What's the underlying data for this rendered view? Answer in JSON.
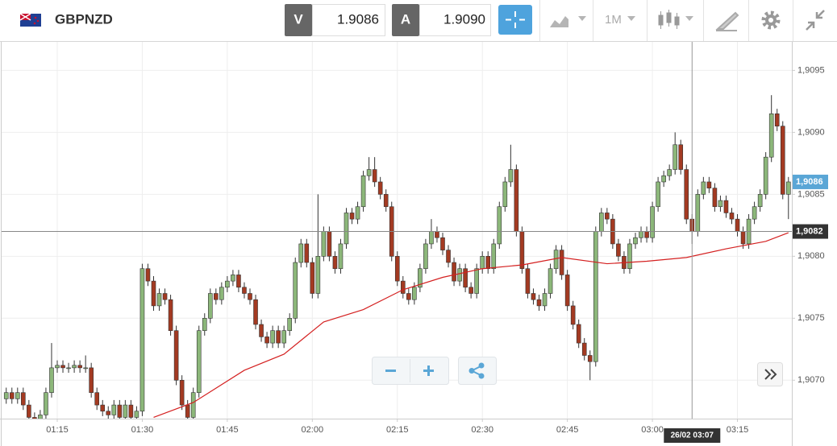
{
  "header": {
    "symbol": "GBPNZD",
    "bid": {
      "label": "V",
      "value": "1.9086"
    },
    "ask": {
      "label": "A",
      "value": "1.9090"
    },
    "timeframe": "1M"
  },
  "chart_data": {
    "type": "candlestick",
    "xlim": [
      64.9,
      204.6
    ],
    "ylim": [
      1.90669,
      1.90973
    ],
    "xticks": [
      {
        "value": 75,
        "label": "01:15"
      },
      {
        "value": 90,
        "label": "01:30"
      },
      {
        "value": 105,
        "label": "01:45"
      },
      {
        "value": 120,
        "label": "02:00"
      },
      {
        "value": 135,
        "label": "02:15"
      },
      {
        "value": 150,
        "label": "02:30"
      },
      {
        "value": 165,
        "label": "02:45"
      },
      {
        "value": 180,
        "label": "03:00"
      },
      {
        "value": 195,
        "label": "03:15"
      }
    ],
    "yticks": [
      {
        "value": 1.907,
        "label": "1,9070"
      },
      {
        "value": 1.9075,
        "label": "1,9075"
      },
      {
        "value": 1.908,
        "label": "1,9080"
      },
      {
        "value": 1.9085,
        "label": "1,9085"
      },
      {
        "value": 1.909,
        "label": "1,9090"
      },
      {
        "value": 1.9095,
        "label": "1,9095"
      }
    ],
    "grid": true,
    "up_color": "#8cb77a",
    "down_color": "#a33a22",
    "x": [
      66,
      67,
      68,
      69,
      70,
      71,
      72,
      73,
      74,
      75,
      76,
      77,
      78,
      79,
      80,
      81,
      82,
      83,
      84,
      85,
      86,
      87,
      88,
      89,
      90,
      91,
      92,
      93,
      94,
      95,
      96,
      97,
      98,
      99,
      100,
      101,
      102,
      103,
      104,
      105,
      106,
      107,
      108,
      109,
      110,
      111,
      112,
      113,
      114,
      115,
      116,
      117,
      118,
      119,
      120,
      121,
      122,
      123,
      124,
      125,
      126,
      127,
      128,
      129,
      130,
      131,
      132,
      133,
      134,
      135,
      136,
      137,
      138,
      139,
      140,
      141,
      142,
      143,
      144,
      145,
      146,
      147,
      148,
      149,
      150,
      151,
      152,
      153,
      154,
      155,
      156,
      157,
      158,
      159,
      160,
      161,
      162,
      163,
      164,
      165,
      166,
      167,
      168,
      169,
      170,
      171,
      172,
      173,
      174,
      175,
      176,
      177,
      178,
      179,
      180,
      181,
      182,
      183,
      184,
      185,
      186,
      187,
      188,
      189,
      190,
      191,
      192,
      193,
      194,
      195,
      196,
      197,
      198,
      199,
      200,
      201,
      202,
      203,
      204
    ],
    "open": [
      1.90685,
      1.9069,
      1.90685,
      1.9069,
      1.9068,
      1.9067,
      1.90668,
      1.90672,
      1.9069,
      1.9071,
      1.90712,
      1.9071,
      1.9071,
      1.90712,
      1.9071,
      1.9071,
      1.9069,
      1.9068,
      1.90675,
      1.90672,
      1.9068,
      1.9067,
      1.9068,
      1.9067,
      1.90675,
      1.9079,
      1.9078,
      1.9076,
      1.9077,
      1.90765,
      1.9074,
      1.907,
      1.9068,
      1.9067,
      1.9069,
      1.9074,
      1.9075,
      1.9077,
      1.90765,
      1.90775,
      1.9078,
      1.90785,
      1.90775,
      1.9077,
      1.90765,
      1.90745,
      1.90735,
      1.9073,
      1.9074,
      1.9073,
      1.9074,
      1.9075,
      1.90795,
      1.9081,
      1.90795,
      1.9077,
      1.908,
      1.9082,
      1.908,
      1.9079,
      1.9081,
      1.90835,
      1.9083,
      1.9084,
      1.90865,
      1.9087,
      1.9086,
      1.9085,
      1.9084,
      1.908,
      1.9078,
      1.9077,
      1.90765,
      1.90775,
      1.9079,
      1.9081,
      1.9082,
      1.90815,
      1.90805,
      1.90795,
      1.9078,
      1.9079,
      1.90775,
      1.9077,
      1.9079,
      1.908,
      1.9079,
      1.9081,
      1.9084,
      1.9086,
      1.9087,
      1.9082,
      1.9079,
      1.9077,
      1.90765,
      1.9076,
      1.9077,
      1.9079,
      1.90805,
      1.90785,
      1.9076,
      1.90745,
      1.9073,
      1.9072,
      1.90715,
      1.9082,
      1.90835,
      1.9083,
      1.9081,
      1.908,
      1.9079,
      1.9081,
      1.90815,
      1.9082,
      1.90815,
      1.9084,
      1.9086,
      1.90865,
      1.9087,
      1.9089,
      1.9087,
      1.9083,
      1.9082,
      1.9085,
      1.9086,
      1.90855,
      1.9084,
      1.90845,
      1.90835,
      1.9083,
      1.9082,
      1.9081,
      1.9083,
      1.9084,
      1.9085,
      1.9088,
      1.90915,
      1.90905,
      1.9085
    ],
    "high": [
      1.90694,
      1.90694,
      1.90694,
      1.90694,
      1.90684,
      1.90674,
      1.90676,
      1.90694,
      1.9073,
      1.90716,
      1.90716,
      1.90714,
      1.90716,
      1.90716,
      1.9072,
      1.90714,
      1.90694,
      1.90684,
      1.90679,
      1.90684,
      1.90684,
      1.90684,
      1.90684,
      1.90679,
      1.90794,
      1.90794,
      1.90784,
      1.90774,
      1.90774,
      1.90769,
      1.90744,
      1.90704,
      1.90684,
      1.90694,
      1.90744,
      1.90754,
      1.90774,
      1.90774,
      1.90779,
      1.90784,
      1.90789,
      1.90789,
      1.90779,
      1.90774,
      1.90769,
      1.90749,
      1.90739,
      1.90744,
      1.90744,
      1.90744,
      1.90754,
      1.90799,
      1.90814,
      1.90814,
      1.90799,
      1.9085,
      1.90824,
      1.90824,
      1.90804,
      1.90814,
      1.90839,
      1.90839,
      1.90844,
      1.90869,
      1.9088,
      1.9088,
      1.90864,
      1.90854,
      1.90844,
      1.90804,
      1.90784,
      1.90774,
      1.90779,
      1.90794,
      1.90814,
      1.9083,
      1.90824,
      1.90819,
      1.90809,
      1.90799,
      1.90794,
      1.90794,
      1.90779,
      1.90794,
      1.90804,
      1.90804,
      1.90814,
      1.90844,
      1.90864,
      1.9089,
      1.90874,
      1.90824,
      1.90794,
      1.90774,
      1.90769,
      1.90774,
      1.90794,
      1.90809,
      1.90809,
      1.90789,
      1.90764,
      1.90749,
      1.90734,
      1.90724,
      1.90824,
      1.90839,
      1.90839,
      1.90834,
      1.90814,
      1.90804,
      1.90814,
      1.90819,
      1.90824,
      1.90824,
      1.90844,
      1.90864,
      1.90869,
      1.90874,
      1.909,
      1.90894,
      1.90874,
      1.90834,
      1.90854,
      1.90864,
      1.90864,
      1.90859,
      1.90849,
      1.90849,
      1.90839,
      1.90834,
      1.90824,
      1.90834,
      1.90844,
      1.90854,
      1.90884,
      1.9093,
      1.90919,
      1.90909,
      1.90864
    ],
    "low": [
      1.90681,
      1.90681,
      1.90681,
      1.90676,
      1.90666,
      1.90664,
      1.90664,
      1.90668,
      1.90686,
      1.90706,
      1.90706,
      1.90706,
      1.90706,
      1.90706,
      1.90706,
      1.90686,
      1.90676,
      1.90671,
      1.90668,
      1.90668,
      1.90666,
      1.90666,
      1.90666,
      1.90666,
      1.90671,
      1.90776,
      1.90756,
      1.90756,
      1.90761,
      1.90736,
      1.90696,
      1.90676,
      1.90666,
      1.90666,
      1.90686,
      1.90736,
      1.90746,
      1.90761,
      1.90761,
      1.90771,
      1.90776,
      1.90771,
      1.90766,
      1.90761,
      1.90741,
      1.90731,
      1.90726,
      1.90726,
      1.90726,
      1.90726,
      1.90736,
      1.90746,
      1.90791,
      1.90791,
      1.90766,
      1.90766,
      1.90796,
      1.90796,
      1.90786,
      1.90786,
      1.90806,
      1.90826,
      1.90826,
      1.90836,
      1.90861,
      1.90856,
      1.90846,
      1.90836,
      1.90796,
      1.90776,
      1.90766,
      1.90761,
      1.90761,
      1.90771,
      1.90786,
      1.90806,
      1.90811,
      1.90801,
      1.90791,
      1.90776,
      1.90776,
      1.90771,
      1.90766,
      1.90766,
      1.90786,
      1.90786,
      1.90786,
      1.90806,
      1.90836,
      1.90856,
      1.90816,
      1.90786,
      1.90766,
      1.90761,
      1.90756,
      1.90756,
      1.90766,
      1.90786,
      1.90781,
      1.90756,
      1.90741,
      1.90726,
      1.90716,
      1.907,
      1.90711,
      1.90816,
      1.90826,
      1.90806,
      1.90796,
      1.90786,
      1.90786,
      1.90806,
      1.90811,
      1.90811,
      1.90811,
      1.90836,
      1.90856,
      1.90861,
      1.90866,
      1.90866,
      1.90826,
      1.9081,
      1.90816,
      1.90846,
      1.90851,
      1.90836,
      1.90836,
      1.90831,
      1.90826,
      1.90816,
      1.90806,
      1.90806,
      1.90826,
      1.90836,
      1.90846,
      1.90876,
      1.90901,
      1.90846,
      1.9083
    ],
    "close": [
      1.9069,
      1.90685,
      1.9069,
      1.9068,
      1.9067,
      1.90668,
      1.90672,
      1.9069,
      1.9071,
      1.90712,
      1.9071,
      1.9071,
      1.90712,
      1.9071,
      1.9071,
      1.9069,
      1.9068,
      1.90675,
      1.90672,
      1.9068,
      1.9067,
      1.9068,
      1.9067,
      1.90675,
      1.9079,
      1.9078,
      1.9076,
      1.9077,
      1.90765,
      1.9074,
      1.907,
      1.9068,
      1.9067,
      1.9069,
      1.9074,
      1.9075,
      1.9077,
      1.90765,
      1.90775,
      1.9078,
      1.90785,
      1.90775,
      1.9077,
      1.90765,
      1.90745,
      1.90735,
      1.9073,
      1.9074,
      1.9073,
      1.9074,
      1.9075,
      1.90795,
      1.9081,
      1.90795,
      1.9077,
      1.908,
      1.9082,
      1.908,
      1.9079,
      1.9081,
      1.90835,
      1.9083,
      1.9084,
      1.90865,
      1.9087,
      1.9086,
      1.9085,
      1.9084,
      1.908,
      1.9078,
      1.9077,
      1.90765,
      1.90775,
      1.9079,
      1.9081,
      1.9082,
      1.90815,
      1.90805,
      1.90795,
      1.9078,
      1.9079,
      1.90775,
      1.9077,
      1.9079,
      1.908,
      1.9079,
      1.9081,
      1.9084,
      1.9086,
      1.9087,
      1.9082,
      1.9079,
      1.9077,
      1.90765,
      1.9076,
      1.9077,
      1.9079,
      1.90805,
      1.90785,
      1.9076,
      1.90745,
      1.9073,
      1.9072,
      1.90715,
      1.9082,
      1.90835,
      1.9083,
      1.9081,
      1.908,
      1.9079,
      1.9081,
      1.90815,
      1.9082,
      1.90815,
      1.9084,
      1.9086,
      1.90865,
      1.9087,
      1.9089,
      1.9087,
      1.9083,
      1.9082,
      1.9085,
      1.9086,
      1.90855,
      1.9084,
      1.90845,
      1.90835,
      1.9083,
      1.9082,
      1.9081,
      1.9083,
      1.9084,
      1.9085,
      1.9088,
      1.90915,
      1.90905,
      1.9085,
      1.9086
    ],
    "moving_average": {
      "color": "#d42020",
      "x": [
        92,
        99,
        108,
        115,
        122,
        129,
        136,
        143,
        150,
        157,
        164,
        172,
        179,
        186,
        193,
        200,
        204
      ],
      "values": [
        1.9067,
        1.90682,
        1.90708,
        1.90721,
        1.90747,
        1.90757,
        1.90773,
        1.90783,
        1.9079,
        1.90793,
        1.90799,
        1.90794,
        1.90796,
        1.90799,
        1.90806,
        1.90812,
        1.90819
      ]
    },
    "last_price": {
      "value": 1.9086,
      "label": "1,9086",
      "color": "#5aa6d6"
    },
    "crosshair": {
      "x": {
        "value": 187,
        "label": "26/02 03:07"
      },
      "y": {
        "value": 1.9082,
        "label": "1,9082"
      }
    }
  }
}
